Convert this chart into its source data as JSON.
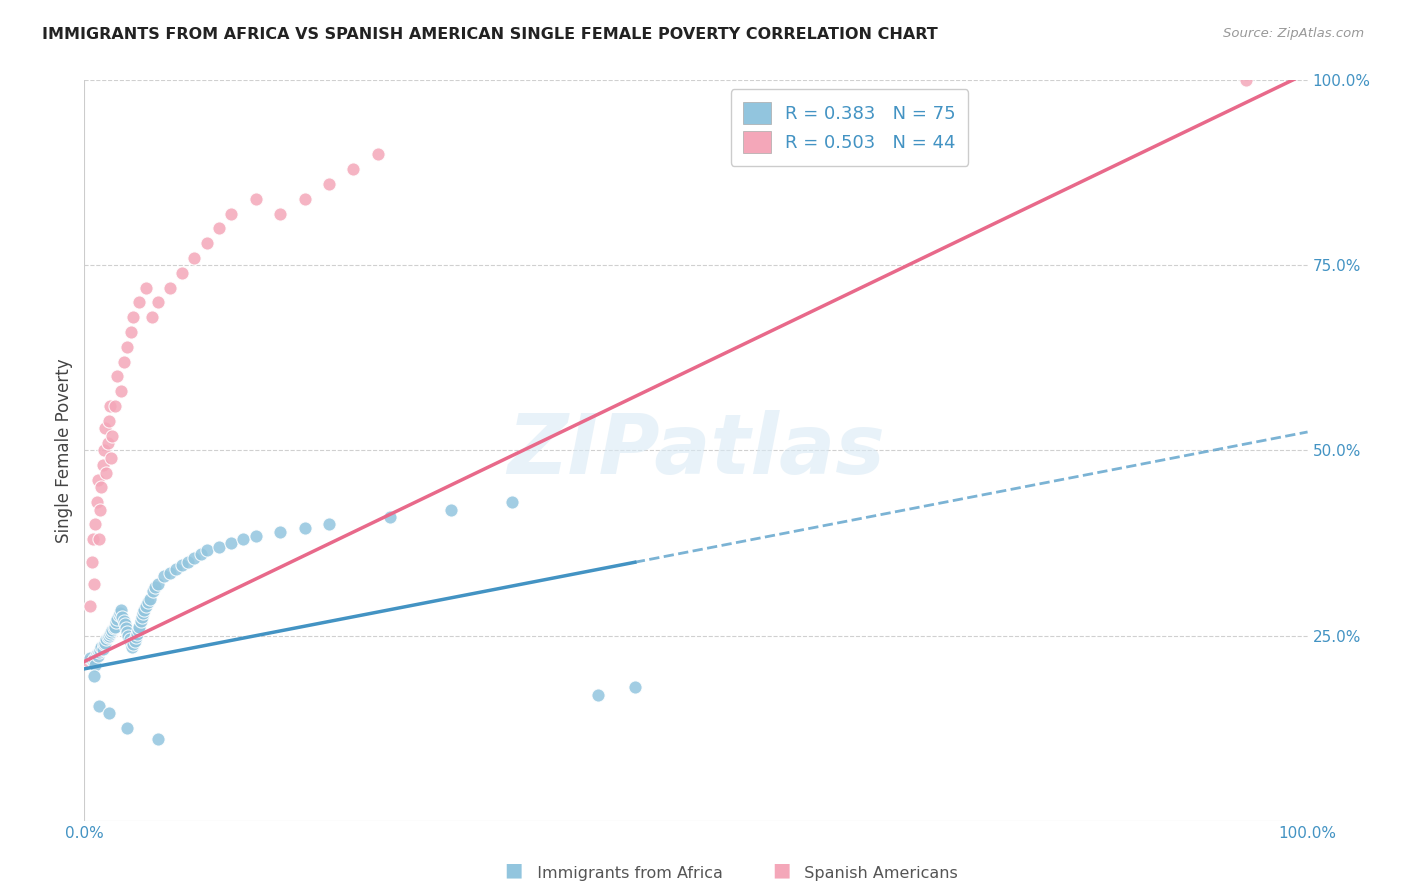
{
  "title": "IMMIGRANTS FROM AFRICA VS SPANISH AMERICAN SINGLE FEMALE POVERTY CORRELATION CHART",
  "source": "Source: ZipAtlas.com",
  "ylabel": "Single Female Poverty",
  "xlim": [
    0,
    1
  ],
  "ylim": [
    0,
    1
  ],
  "ytick_positions": [
    0.25,
    0.5,
    0.75,
    1.0
  ],
  "ytick_labels": [
    "25.0%",
    "50.0%",
    "75.0%",
    "100.0%"
  ],
  "legend_r1": "R = 0.383",
  "legend_n1": "N = 75",
  "legend_r2": "R = 0.503",
  "legend_n2": "N = 44",
  "blue_color": "#92c5de",
  "pink_color": "#f4a7b9",
  "blue_line_color": "#4393c3",
  "pink_line_color": "#e8698a",
  "watermark": "ZIPatlas",
  "background_color": "#ffffff",
  "grid_color": "#d0d0d0",
  "blue_line_intercept": 0.205,
  "blue_line_slope": 0.32,
  "pink_line_intercept": 0.215,
  "pink_line_slope": 0.795,
  "blue_scatter_x": [
    0.005,
    0.007,
    0.008,
    0.009,
    0.01,
    0.011,
    0.012,
    0.013,
    0.014,
    0.015,
    0.016,
    0.017,
    0.018,
    0.019,
    0.02,
    0.021,
    0.022,
    0.023,
    0.024,
    0.025,
    0.026,
    0.027,
    0.028,
    0.029,
    0.03,
    0.031,
    0.032,
    0.033,
    0.034,
    0.035,
    0.036,
    0.037,
    0.038,
    0.039,
    0.04,
    0.041,
    0.042,
    0.043,
    0.044,
    0.045,
    0.046,
    0.047,
    0.048,
    0.049,
    0.05,
    0.052,
    0.054,
    0.056,
    0.058,
    0.06,
    0.065,
    0.07,
    0.075,
    0.08,
    0.085,
    0.09,
    0.095,
    0.1,
    0.11,
    0.12,
    0.13,
    0.14,
    0.16,
    0.18,
    0.2,
    0.25,
    0.3,
    0.35,
    0.42,
    0.45,
    0.008,
    0.012,
    0.02,
    0.035,
    0.06
  ],
  "blue_scatter_y": [
    0.22,
    0.215,
    0.218,
    0.21,
    0.225,
    0.222,
    0.228,
    0.23,
    0.235,
    0.232,
    0.238,
    0.24,
    0.245,
    0.248,
    0.25,
    0.252,
    0.255,
    0.258,
    0.26,
    0.262,
    0.268,
    0.272,
    0.278,
    0.28,
    0.285,
    0.275,
    0.27,
    0.265,
    0.26,
    0.255,
    0.25,
    0.245,
    0.24,
    0.235,
    0.238,
    0.242,
    0.248,
    0.252,
    0.258,
    0.262,
    0.27,
    0.275,
    0.28,
    0.285,
    0.29,
    0.295,
    0.3,
    0.31,
    0.315,
    0.32,
    0.33,
    0.335,
    0.34,
    0.345,
    0.35,
    0.355,
    0.36,
    0.365,
    0.37,
    0.375,
    0.38,
    0.385,
    0.39,
    0.395,
    0.4,
    0.41,
    0.42,
    0.43,
    0.17,
    0.18,
    0.195,
    0.155,
    0.145,
    0.125,
    0.11
  ],
  "pink_scatter_x": [
    0.003,
    0.005,
    0.006,
    0.007,
    0.008,
    0.009,
    0.01,
    0.011,
    0.012,
    0.013,
    0.014,
    0.015,
    0.016,
    0.017,
    0.018,
    0.019,
    0.02,
    0.021,
    0.022,
    0.023,
    0.025,
    0.027,
    0.03,
    0.032,
    0.035,
    0.038,
    0.04,
    0.045,
    0.05,
    0.055,
    0.06,
    0.07,
    0.08,
    0.09,
    0.1,
    0.11,
    0.12,
    0.14,
    0.16,
    0.18,
    0.2,
    0.22,
    0.24,
    0.95
  ],
  "pink_scatter_y": [
    0.215,
    0.29,
    0.35,
    0.38,
    0.32,
    0.4,
    0.43,
    0.46,
    0.38,
    0.42,
    0.45,
    0.48,
    0.5,
    0.53,
    0.47,
    0.51,
    0.54,
    0.56,
    0.49,
    0.52,
    0.56,
    0.6,
    0.58,
    0.62,
    0.64,
    0.66,
    0.68,
    0.7,
    0.72,
    0.68,
    0.7,
    0.72,
    0.74,
    0.76,
    0.78,
    0.8,
    0.82,
    0.84,
    0.82,
    0.84,
    0.86,
    0.88,
    0.9,
    1.0
  ]
}
